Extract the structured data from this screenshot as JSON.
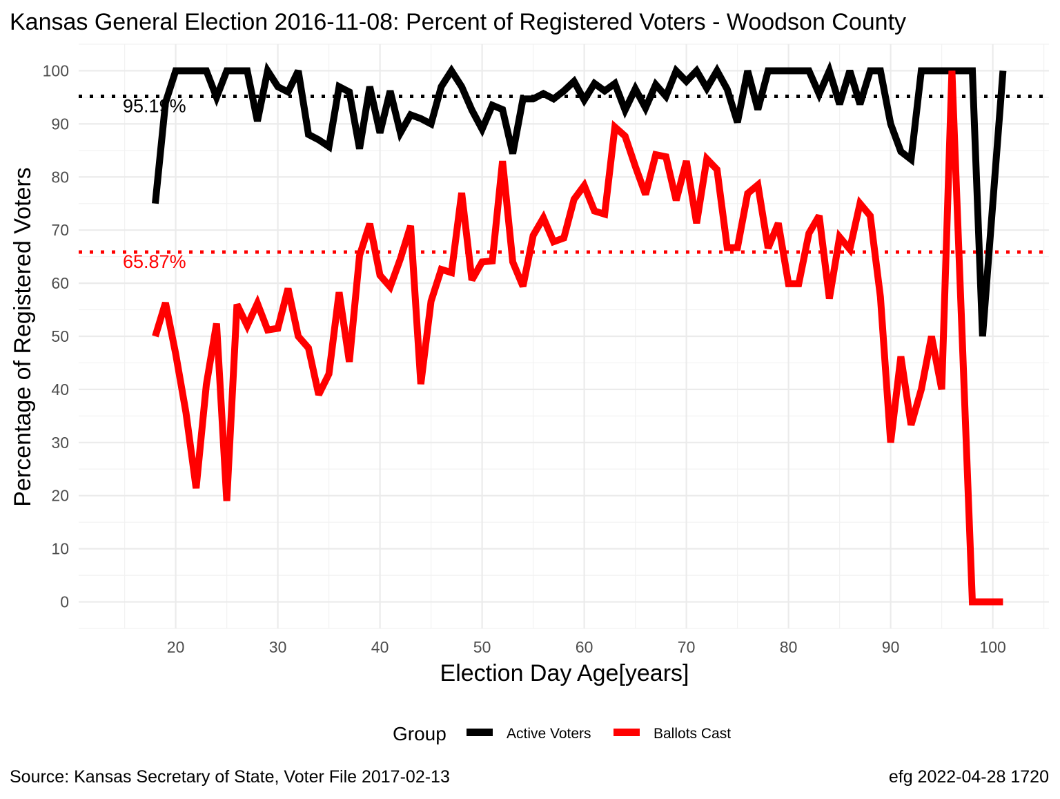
{
  "chart_data": {
    "type": "line",
    "title": "Kansas General Election 2016-11-08:  Percent of Registered Voters - Woodson County",
    "xlabel": "Election Day Age[years]",
    "ylabel": "Percentage of Registered Voters",
    "xlim": [
      10.5,
      105.5
    ],
    "ylim": [
      -5,
      105
    ],
    "x_ticks": [
      20,
      30,
      40,
      50,
      60,
      70,
      80,
      90,
      100
    ],
    "y_ticks": [
      0,
      10,
      20,
      30,
      40,
      50,
      60,
      70,
      80,
      90,
      100
    ],
    "grid": true,
    "legend": {
      "title": "Group",
      "position": "bottom"
    },
    "reference_lines": [
      {
        "label": "95.19%",
        "value": 95.19,
        "color": "#000000"
      },
      {
        "label": "65.87%",
        "value": 65.87,
        "color": "#ff0000"
      }
    ],
    "series": [
      {
        "name": "Active Voters",
        "color": "#000000",
        "x": [
          18,
          19,
          20,
          21,
          22,
          23,
          24,
          25,
          26,
          27,
          28,
          29,
          30,
          31,
          32,
          33,
          34,
          35,
          36,
          37,
          38,
          39,
          40,
          41,
          42,
          43,
          44,
          45,
          46,
          47,
          48,
          49,
          50,
          51,
          52,
          53,
          54,
          55,
          56,
          57,
          58,
          59,
          60,
          61,
          62,
          63,
          64,
          65,
          66,
          67,
          68,
          69,
          70,
          71,
          72,
          73,
          74,
          75,
          76,
          77,
          78,
          79,
          80,
          81,
          82,
          83,
          84,
          85,
          86,
          87,
          88,
          89,
          90,
          91,
          92,
          93,
          94,
          95,
          96,
          97,
          98,
          99,
          100,
          101
        ],
        "values": [
          75,
          94,
          100,
          100,
          100,
          100,
          95,
          100,
          100,
          100,
          90.5,
          100,
          97,
          96,
          100,
          88,
          87,
          85.7,
          97,
          96,
          85.3,
          97,
          88.3,
          96.2,
          88.3,
          91.7,
          91,
          90,
          97,
          100,
          97,
          92.6,
          89,
          93.5,
          92.7,
          84.4,
          94.7,
          94.7,
          95.7,
          94.7,
          96.2,
          98,
          94.5,
          97.6,
          96.2,
          97.6,
          92.6,
          96.6,
          93,
          97.4,
          95.2,
          100,
          98,
          100,
          96.7,
          100,
          96.5,
          90.3,
          100,
          92.7,
          100,
          100,
          100,
          100,
          100,
          95.6,
          100,
          93.7,
          100,
          93.7,
          100,
          100,
          90,
          84.8,
          83.3,
          100,
          100,
          100,
          100,
          100,
          100,
          50,
          75,
          100
        ]
      },
      {
        "name": "Ballots Cast",
        "color": "#ff0000",
        "x": [
          18,
          19,
          20,
          21,
          22,
          23,
          24,
          25,
          26,
          27,
          28,
          29,
          30,
          31,
          32,
          33,
          34,
          35,
          36,
          37,
          38,
          39,
          40,
          41,
          42,
          43,
          44,
          45,
          46,
          47,
          48,
          49,
          50,
          51,
          52,
          53,
          54,
          55,
          56,
          57,
          58,
          59,
          60,
          61,
          62,
          63,
          64,
          65,
          66,
          67,
          68,
          69,
          70,
          71,
          72,
          73,
          74,
          75,
          76,
          77,
          78,
          79,
          80,
          81,
          82,
          83,
          84,
          85,
          86,
          87,
          88,
          89,
          90,
          91,
          92,
          93,
          94,
          95,
          96,
          97,
          98,
          99,
          100,
          101
        ],
        "values": [
          50,
          56.3,
          46.7,
          35.7,
          21.4,
          40.9,
          52.4,
          19,
          56,
          52,
          56.2,
          51.2,
          51.5,
          59,
          50,
          47.8,
          39,
          42.9,
          58.3,
          45.2,
          65.2,
          71.2,
          61.5,
          59.3,
          64.6,
          70.8,
          41,
          56.6,
          62.6,
          62,
          77,
          60.6,
          64,
          64.2,
          83,
          64,
          59.4,
          69,
          72.3,
          67.8,
          68.5,
          75.8,
          78.4,
          73.6,
          73,
          89.4,
          87.7,
          82,
          76.7,
          84.2,
          83.8,
          75.6,
          83,
          71.3,
          83.4,
          81.4,
          66.7,
          66.7,
          76.9,
          78.5,
          66.6,
          71.3,
          59.9,
          59.9,
          69.4,
          72.7,
          57.1,
          68.7,
          66.4,
          75,
          72.7,
          57.4,
          30,
          46.2,
          33.3,
          40,
          50,
          40,
          100,
          50,
          0,
          0,
          0,
          0
        ]
      }
    ]
  },
  "footer": {
    "source": "Source:  Kansas Secretary of State, Voter File  2017-02-13",
    "credit": "efg 2022-04-28 1720"
  }
}
